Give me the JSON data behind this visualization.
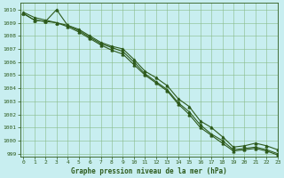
{
  "xlabel": "Graphe pression niveau de la mer (hPa)",
  "bg_color": "#c8eef0",
  "grid_color": "#88bb88",
  "line_color": "#2d5a1b",
  "tick_color": "#2d5a1b",
  "ylim": [
    998.8,
    1010.5
  ],
  "xlim": [
    -0.3,
    23
  ],
  "yticks": [
    999,
    1000,
    1001,
    1002,
    1003,
    1004,
    1005,
    1006,
    1007,
    1008,
    1009,
    1010
  ],
  "xticks": [
    0,
    1,
    2,
    3,
    4,
    5,
    6,
    7,
    8,
    9,
    10,
    11,
    12,
    13,
    14,
    15,
    16,
    17,
    18,
    19,
    20,
    21,
    22,
    23
  ],
  "line1_x": [
    0,
    1,
    2,
    3,
    4,
    5,
    6,
    7,
    8,
    9,
    10,
    11,
    12,
    13,
    14,
    15,
    16,
    17,
    18,
    19,
    20,
    21,
    22,
    23
  ],
  "line1_y": [
    1009.7,
    1009.2,
    1009.1,
    1010.0,
    1008.8,
    1008.5,
    1008.0,
    1007.5,
    1007.2,
    1007.0,
    1006.2,
    1005.3,
    1004.8,
    1004.2,
    1003.2,
    1002.6,
    1001.5,
    1001.0,
    1000.3,
    999.5,
    999.6,
    999.8,
    999.6,
    999.3
  ],
  "line2_x": [
    0,
    1,
    2,
    3,
    4,
    5,
    6,
    7,
    8,
    9,
    10,
    11,
    12,
    13,
    14,
    15,
    16,
    17,
    18,
    19,
    20,
    21,
    22,
    23
  ],
  "line2_y": [
    1009.8,
    1009.4,
    1009.2,
    1009.0,
    1008.8,
    1008.4,
    1007.9,
    1007.4,
    1007.1,
    1006.8,
    1006.0,
    1005.1,
    1004.5,
    1003.9,
    1002.9,
    1002.2,
    1001.2,
    1000.5,
    1000.0,
    999.3,
    999.4,
    999.5,
    999.3,
    999.0
  ],
  "line3_x": [
    0,
    1,
    2,
    3,
    4,
    5,
    6,
    7,
    8,
    9,
    10,
    11,
    12,
    13,
    14,
    15,
    16,
    17,
    18,
    19,
    20,
    21,
    22,
    23
  ],
  "line3_y": [
    1009.7,
    1009.2,
    1009.1,
    1009.0,
    1008.7,
    1008.3,
    1007.8,
    1007.3,
    1006.9,
    1006.6,
    1005.8,
    1005.0,
    1004.4,
    1003.8,
    1002.8,
    1002.0,
    1001.0,
    1000.4,
    999.8,
    999.2,
    999.3,
    999.4,
    999.2,
    998.9
  ]
}
